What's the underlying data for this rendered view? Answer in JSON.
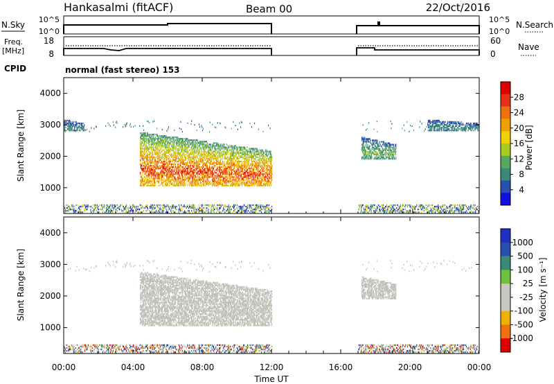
{
  "header": {
    "station": "Hankasalmi (fitACF)",
    "beam": "Beam 00",
    "date": "22/Oct/2016"
  },
  "noise_panel": {
    "left_label": "N.Sky",
    "right_label": "N.Search",
    "left_ticks": [
      "10^5",
      "10^0"
    ],
    "right_ticks": [
      "10^5",
      "10^0"
    ]
  },
  "freq_panel": {
    "left_label_1": "Freq.",
    "left_label_2": "[MHz]",
    "left_ticks": [
      "18",
      "8"
    ],
    "right_label": "Nave",
    "right_ticks": [
      "60",
      "0"
    ]
  },
  "cpid": {
    "label": "CPID",
    "mode": "normal (fast stereo) 153"
  },
  "power_panel": {
    "ylabel": "Slant Range [km]",
    "yticks": [
      "4000",
      "3000",
      "2000",
      "1000"
    ],
    "colorbar_label": "Power [dB]",
    "colorbar_ticks": [
      "28",
      "24",
      "20",
      "16",
      "12",
      "8",
      "4"
    ]
  },
  "velocity_panel": {
    "ylabel": "Slant Range [km]",
    "yticks": [
      "4000",
      "3000",
      "2000",
      "1000"
    ],
    "colorbar_label": "Velocity [m s⁻¹]",
    "colorbar_ticks": [
      "1000",
      "500",
      "100",
      "25",
      "-25",
      "-100",
      "-500",
      "-1000"
    ]
  },
  "xaxis": {
    "label": "Time UT",
    "ticks": [
      "00:00",
      "04:00",
      "08:00",
      "12:00",
      "16:00",
      "20:00",
      "00:00"
    ]
  },
  "colors": {
    "power_scale": [
      "#1010e0",
      "#2850b0",
      "#3a8a7a",
      "#5aa860",
      "#a8cc20",
      "#f0d000",
      "#f0a000",
      "#f07010",
      "#e83018",
      "#e00000"
    ],
    "velocity_scale": [
      "#e00000",
      "#f07010",
      "#f0b000",
      "#c8c8c0",
      "#c8c8c0",
      "#70c040",
      "#3a8a7a",
      "#2850b0",
      "#2030c0"
    ],
    "ground_scatter": "#c0c0b8"
  },
  "chart_data": {
    "type": "heatmap",
    "x_unit": "hours UT",
    "xlim": [
      0,
      24
    ],
    "y_unit": "km",
    "ylim": [
      180,
      4500
    ],
    "data_gaps_ut": [
      [
        12.0,
        17.0
      ]
    ],
    "noise_series_steps": [
      [
        0,
        6,
        0.6
      ],
      [
        6,
        12,
        0.75
      ],
      [
        17,
        18.2,
        0.55
      ],
      [
        18.2,
        24,
        0.6
      ]
    ],
    "frequency_steps_mhz": [
      [
        0,
        12,
        12.5
      ],
      [
        17,
        18.2,
        12.5
      ],
      [
        18.2,
        24,
        11.8
      ]
    ],
    "nave_ut_level": 60,
    "power_regions": [
      {
        "t_start": 4.4,
        "t_end": 12.0,
        "r_low": 1050,
        "r_high": 2750,
        "peak_db": 28
      },
      {
        "t_start": 0.0,
        "t_end": 1.2,
        "r_low": 2800,
        "r_high": 3150,
        "peak_db": 8
      },
      {
        "t_start": 17.2,
        "t_end": 19.2,
        "r_low": 1900,
        "r_high": 2600,
        "peak_db": 12
      },
      {
        "t_start": 21.0,
        "t_end": 24.0,
        "r_low": 2800,
        "r_high": 3150,
        "peak_db": 8
      }
    ],
    "velocity_regions": [
      {
        "t_start": 4.4,
        "t_end": 12.0,
        "r_low": 1050,
        "r_high": 2750,
        "velocity_ms": 0
      },
      {
        "t_start": 17.2,
        "t_end": 19.2,
        "r_low": 1900,
        "r_high": 2600,
        "velocity_ms": 0
      }
    ]
  }
}
